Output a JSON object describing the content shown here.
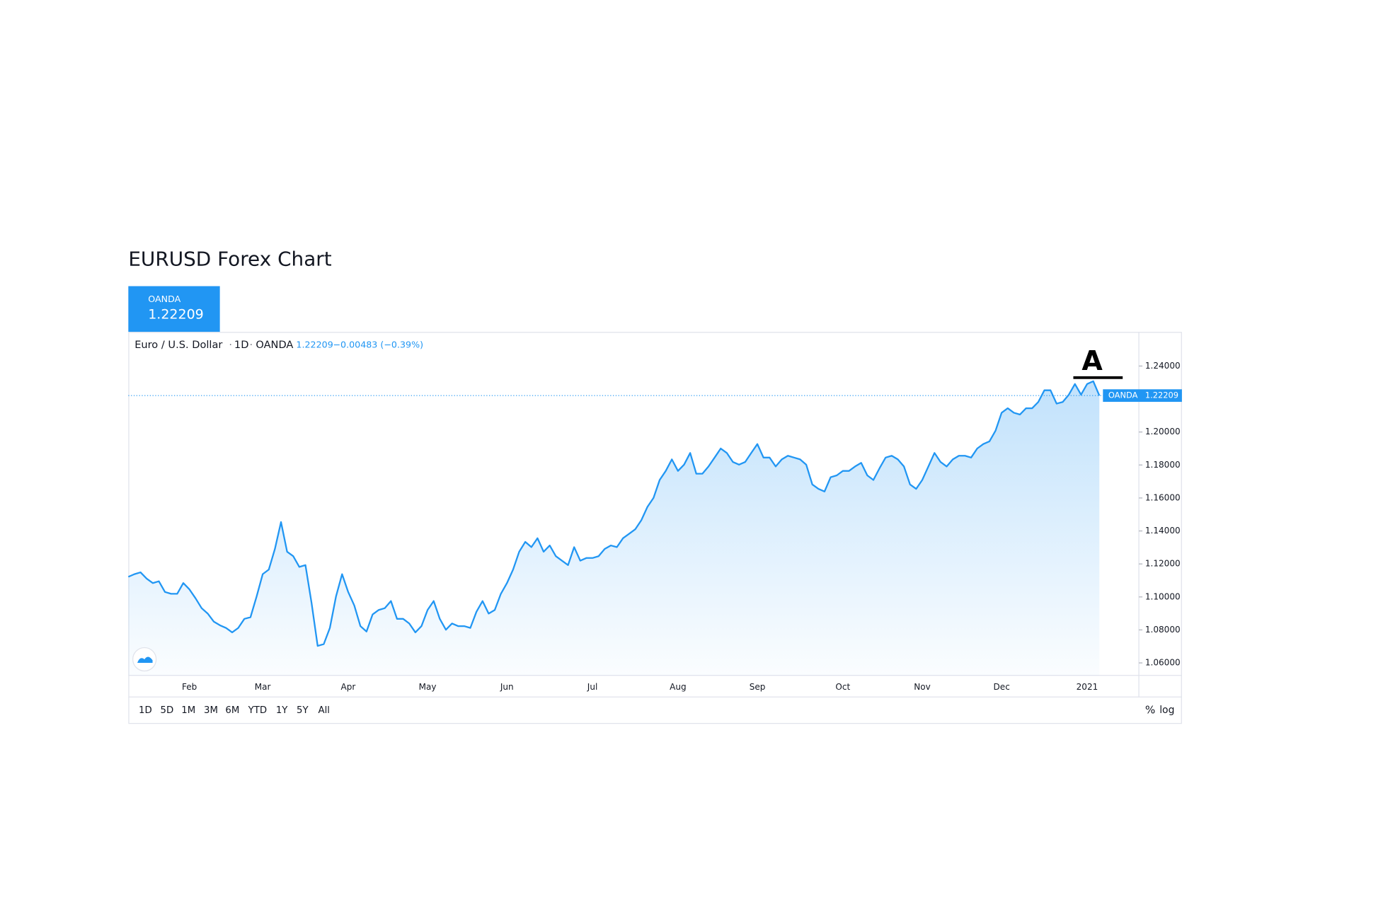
{
  "header": {
    "title": "EURUSD Forex Chart"
  },
  "chart_data": {
    "type": "line",
    "symbol": "Euro / U.S. Dollar",
    "interval": "1D",
    "exchange": "OANDA",
    "last_price": 1.22209,
    "change_text": "−0.00483 (−0.39%)",
    "color": "#2196f3",
    "annotation": "A",
    "ylim": [
      1.0524,
      1.2607
    ],
    "yticks": [
      {
        "value": 1.06,
        "label": "1.06000"
      },
      {
        "value": 1.08,
        "label": "1.08000"
      },
      {
        "value": 1.1,
        "label": "1.10000"
      },
      {
        "value": 1.12,
        "label": "1.12000"
      },
      {
        "value": 1.14,
        "label": "1.14000"
      },
      {
        "value": 1.16,
        "label": "1.16000"
      },
      {
        "value": 1.18,
        "label": "1.18000"
      },
      {
        "value": 1.2,
        "label": "1.20000"
      },
      {
        "value": 1.24,
        "label": "1.24000"
      }
    ],
    "categories": [
      null,
      null,
      null,
      null,
      null,
      null,
      null,
      null,
      null,
      null,
      "Feb",
      null,
      null,
      null,
      null,
      null,
      null,
      null,
      null,
      null,
      null,
      null,
      "Mar",
      null,
      null,
      null,
      null,
      null,
      null,
      null,
      null,
      null,
      null,
      null,
      null,
      null,
      "Apr",
      null,
      null,
      null,
      null,
      null,
      null,
      null,
      null,
      null,
      null,
      null,
      null,
      "May",
      null,
      null,
      null,
      null,
      null,
      null,
      null,
      null,
      null,
      null,
      null,
      null,
      "Jun",
      null,
      null,
      null,
      null,
      null,
      null,
      null,
      null,
      null,
      null,
      null,
      null,
      null,
      "Jul",
      null,
      null,
      null,
      null,
      null,
      null,
      null,
      null,
      null,
      null,
      null,
      null,
      null,
      "Aug",
      null,
      null,
      null,
      null,
      null,
      null,
      null,
      null,
      null,
      null,
      null,
      null,
      "Sep",
      null,
      null,
      null,
      null,
      null,
      null,
      null,
      null,
      null,
      null,
      null,
      null,
      null,
      "Oct",
      null,
      null,
      null,
      null,
      null,
      null,
      null,
      null,
      null,
      null,
      null,
      null,
      "Nov",
      null,
      null,
      null,
      null,
      null,
      null,
      null,
      null,
      null,
      null,
      null,
      null,
      "Dec",
      null,
      null,
      null,
      null,
      null,
      null,
      null,
      null,
      null,
      null,
      null,
      null,
      null,
      "2021",
      null,
      null
    ],
    "values": [
      1.1122,
      1.1138,
      1.1149,
      1.1111,
      1.1084,
      1.1095,
      1.103,
      1.1019,
      1.1019,
      1.1084,
      1.1046,
      1.0992,
      1.0932,
      1.0899,
      1.085,
      1.0828,
      1.0812,
      1.0785,
      1.0812,
      1.0867,
      1.0877,
      1.1002,
      1.1138,
      1.1166,
      1.1291,
      1.1454,
      1.1274,
      1.1247,
      1.1182,
      1.1193,
      1.0964,
      1.0703,
      1.0714,
      1.0812,
      1.1002,
      1.1138,
      1.103,
      1.0948,
      1.0823,
      1.079,
      1.0894,
      1.0921,
      1.0932,
      1.0975,
      1.0867,
      1.0867,
      1.0839,
      1.0785,
      1.0823,
      1.0921,
      1.0975,
      1.0867,
      1.0801,
      1.0839,
      1.0823,
      1.0823,
      1.0812,
      1.091,
      1.0975,
      1.0899,
      1.0921,
      1.1019,
      1.1084,
      1.1166,
      1.1274,
      1.1334,
      1.1302,
      1.1356,
      1.1274,
      1.1312,
      1.1247,
      1.122,
      1.1193,
      1.1302,
      1.122,
      1.1236,
      1.1236,
      1.1247,
      1.1291,
      1.1312,
      1.1302,
      1.1356,
      1.1383,
      1.141,
      1.1465,
      1.1546,
      1.1601,
      1.1709,
      1.1764,
      1.1834,
      1.1764,
      1.1802,
      1.1873,
      1.1747,
      1.1747,
      1.1791,
      1.1845,
      1.19,
      1.1873,
      1.1818,
      1.1802,
      1.1818,
      1.1873,
      1.1927,
      1.1845,
      1.1845,
      1.1791,
      1.1834,
      1.1856,
      1.1845,
      1.1834,
      1.1802,
      1.1682,
      1.1655,
      1.1639,
      1.1726,
      1.1737,
      1.1764,
      1.1764,
      1.1791,
      1.1813,
      1.1737,
      1.1709,
      1.178,
      1.1845,
      1.1856,
      1.1834,
      1.1791,
      1.1682,
      1.1655,
      1.1709,
      1.1791,
      1.1873,
      1.1818,
      1.1791,
      1.1834,
      1.1856,
      1.1856,
      1.1845,
      1.19,
      1.1927,
      1.1943,
      1.2008,
      1.2117,
      1.2144,
      1.2117,
      1.2106,
      1.2144,
      1.2144,
      1.2182,
      1.2253,
      1.2253,
      1.2172,
      1.2182,
      1.2226,
      1.2291,
      1.2226,
      1.2291,
      1.2308,
      1.22209
    ]
  },
  "controls": {
    "ranges": [
      "1D",
      "5D",
      "1M",
      "3M",
      "6M",
      "YTD",
      "1Y",
      "5Y",
      "All"
    ],
    "percent": "%",
    "log": "log"
  }
}
